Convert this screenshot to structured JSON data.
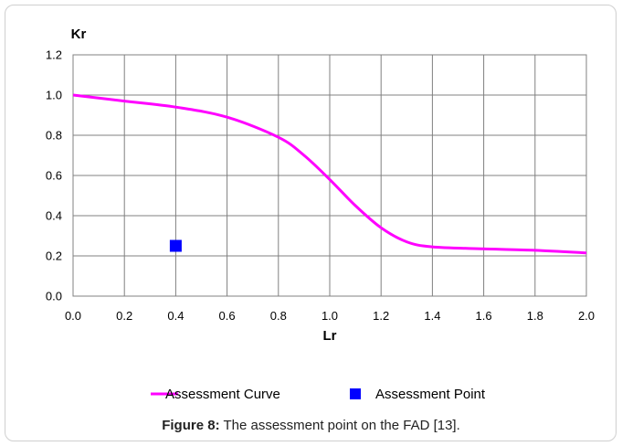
{
  "chart_data": {
    "type": "line",
    "ylabel": "Kr",
    "xlabel": "Lr",
    "xlim": [
      0.0,
      2.0
    ],
    "ylim": [
      0.0,
      1.2
    ],
    "x_ticks": [
      "0.0",
      "0.2",
      "0.4",
      "0.6",
      "0.8",
      "1.0",
      "1.2",
      "1.4",
      "1.6",
      "1.8",
      "2.0"
    ],
    "y_ticks": [
      "0.0",
      "0.2",
      "0.4",
      "0.6",
      "0.8",
      "1.0",
      "1.2"
    ],
    "grid": true,
    "legend_position": "bottom",
    "series": [
      {
        "name": "Assessment Curve",
        "kind": "line",
        "color": "#ff00ff",
        "x": [
          0.0,
          0.2,
          0.4,
          0.6,
          0.8,
          0.9,
          1.0,
          1.1,
          1.2,
          1.3,
          1.4,
          1.6,
          1.8,
          2.0
        ],
        "y": [
          1.0,
          0.97,
          0.94,
          0.89,
          0.79,
          0.7,
          0.58,
          0.45,
          0.34,
          0.27,
          0.245,
          0.235,
          0.228,
          0.215
        ]
      },
      {
        "name": "Assessment Point",
        "kind": "scatter",
        "color": "#0000ff",
        "x": [
          0.4
        ],
        "y": [
          0.25
        ]
      }
    ]
  },
  "caption": {
    "label": "Figure 8:",
    "text": " The assessment point on the FAD [13]."
  }
}
